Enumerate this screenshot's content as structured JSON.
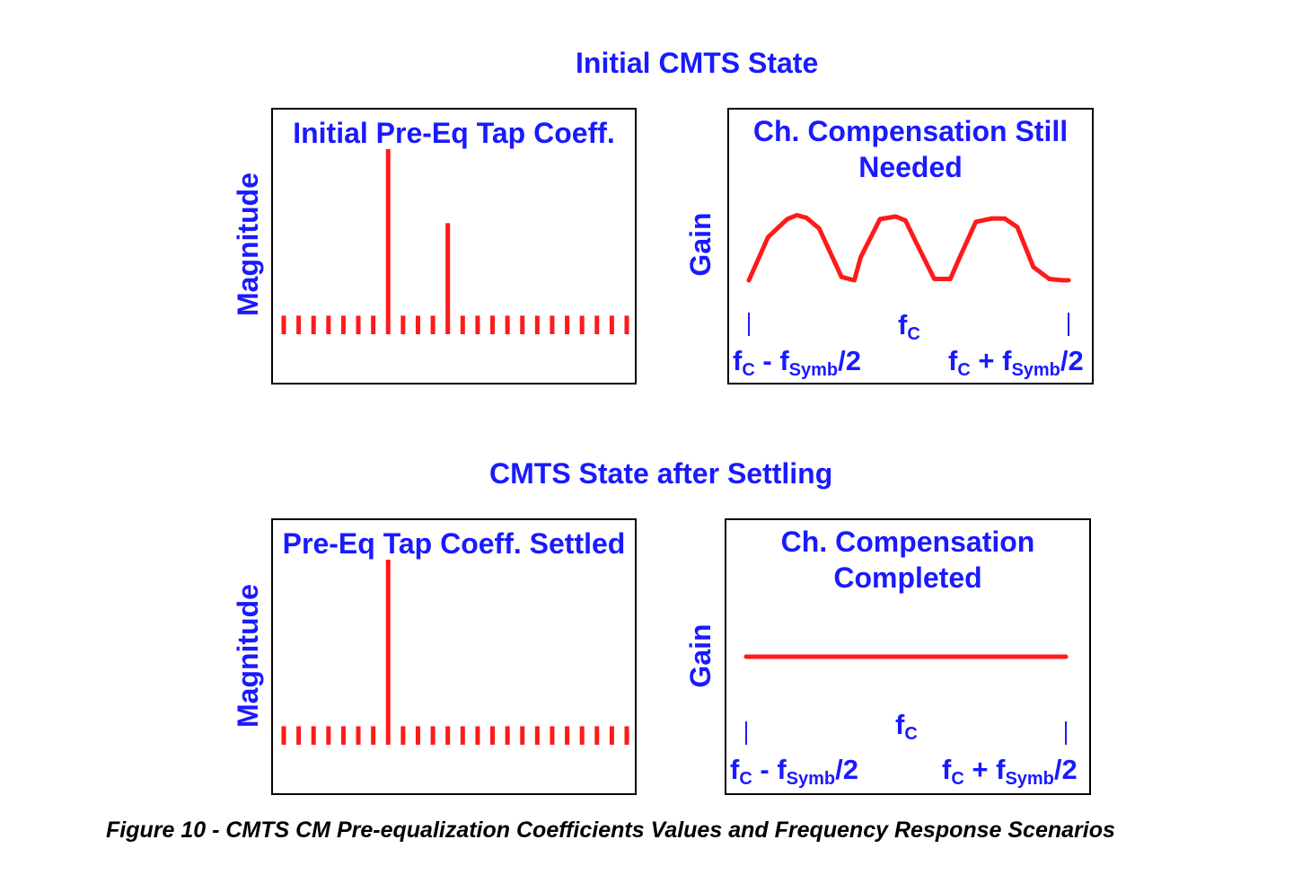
{
  "top_section": {
    "title": "Initial CMTS State",
    "left_panel": {
      "title": "Initial Pre-Eq Tap Coeff.",
      "y_label": "Magnitude"
    },
    "right_panel": {
      "title_line1": "Ch. Compensation Still",
      "title_line2": "Needed",
      "y_label": "Gain",
      "center_freq": {
        "base": "f",
        "sub": "C"
      },
      "left_freq": {
        "base": "f",
        "sub": "C",
        "mid": " - f",
        "sub2": "Symb",
        "tail": "/2"
      },
      "right_freq": {
        "base": "f",
        "sub": "C",
        "mid": " + f",
        "sub2": "Symb",
        "tail": "/2"
      }
    }
  },
  "bottom_section": {
    "title": "CMTS State after Settling",
    "left_panel": {
      "title": "Pre-Eq Tap Coeff. Settled",
      "y_label": "Magnitude"
    },
    "right_panel": {
      "title_line1": "Ch. Compensation",
      "title_line2": "Completed",
      "y_label": "Gain",
      "center_freq": {
        "base": "f",
        "sub": "C"
      },
      "left_freq": {
        "base": "f",
        "sub": "C",
        "mid": " - f",
        "sub2": "Symb",
        "tail": "/2"
      },
      "right_freq": {
        "base": "f",
        "sub": "C",
        "mid": " + f",
        "sub2": "Symb",
        "tail": "/2"
      }
    }
  },
  "caption": "Figure 10 - CMTS CM Pre-equalization Coefficients Values and Frequency Response Scenarios",
  "colors": {
    "text": "#1a1aff",
    "trace": "#ff1a1a",
    "frame": "#000000",
    "caption": "#000000"
  },
  "chart_data": [
    {
      "type": "bar",
      "title": "Initial Pre-Eq Tap Coeff.",
      "ylabel": "Magnitude",
      "tap_count": 24,
      "values": [
        0.1,
        0.1,
        0.1,
        0.1,
        0.1,
        0.1,
        0.1,
        1.0,
        0.1,
        0.1,
        0.1,
        0.6,
        0.1,
        0.1,
        0.1,
        0.1,
        0.1,
        0.1,
        0.1,
        0.1,
        0.1,
        0.1,
        0.1,
        0.1
      ]
    },
    {
      "type": "line",
      "title": "Ch. Compensation Still Needed",
      "ylabel": "Gain",
      "x": [
        0.0,
        0.06,
        0.12,
        0.15,
        0.18,
        0.22,
        0.29,
        0.33,
        0.35,
        0.41,
        0.46,
        0.49,
        0.52,
        0.58,
        0.63,
        0.66,
        0.71,
        0.76,
        0.8,
        0.84,
        0.89,
        0.94,
        0.98,
        1.0
      ],
      "values": [
        0.0,
        0.65,
        0.92,
        0.98,
        0.94,
        0.78,
        0.05,
        0.0,
        0.35,
        0.92,
        0.96,
        0.9,
        0.6,
        0.02,
        0.02,
        0.35,
        0.88,
        0.93,
        0.93,
        0.8,
        0.2,
        0.02,
        0.0,
        0.0
      ]
    },
    {
      "type": "bar",
      "title": "Pre-Eq Tap Coeff. Settled",
      "ylabel": "Magnitude",
      "tap_count": 24,
      "values": [
        0.1,
        0.1,
        0.1,
        0.1,
        0.1,
        0.1,
        0.1,
        1.0,
        0.1,
        0.1,
        0.1,
        0.1,
        0.1,
        0.1,
        0.1,
        0.1,
        0.1,
        0.1,
        0.1,
        0.1,
        0.1,
        0.1,
        0.1,
        0.1
      ]
    },
    {
      "type": "line",
      "title": "Ch. Compensation Completed",
      "ylabel": "Gain",
      "x": [
        0.0,
        1.0
      ],
      "values": [
        0.5,
        0.5
      ]
    }
  ]
}
